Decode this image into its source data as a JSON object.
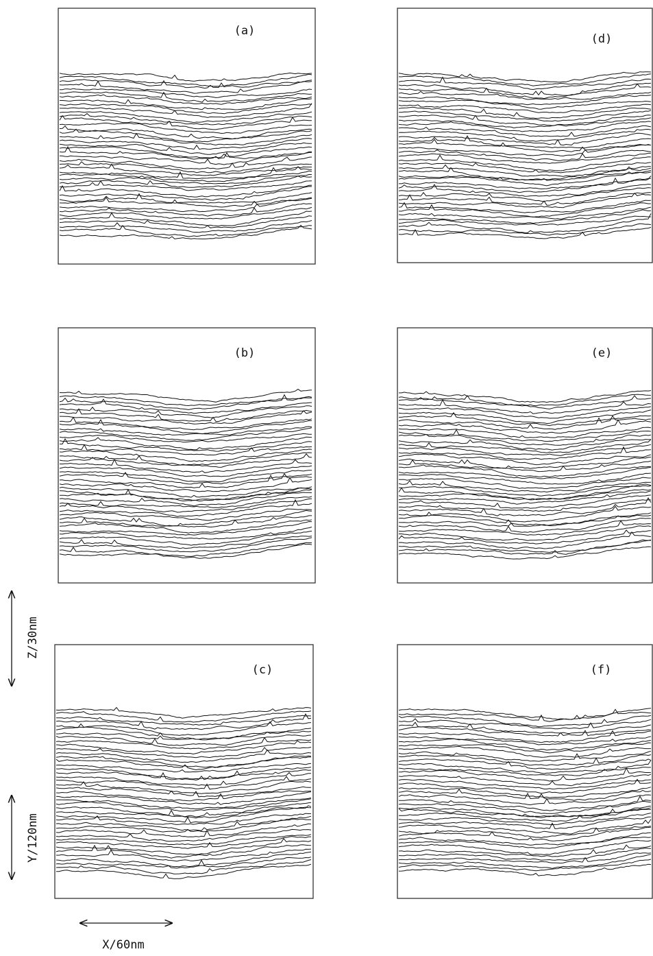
{
  "panels": [
    {
      "label": "(a)"
    },
    {
      "label": "(b)"
    },
    {
      "label": "(c)"
    },
    {
      "label": "(d)"
    },
    {
      "label": "(e)"
    },
    {
      "label": "(f)"
    }
  ],
  "scale_bars": {
    "z": "Z/30nm",
    "y": "Y/120nm",
    "x": "X/60nm"
  }
}
